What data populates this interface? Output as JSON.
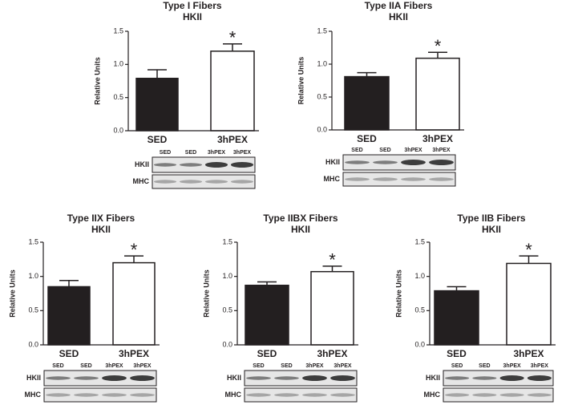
{
  "chart_data": [
    {
      "type": "bar",
      "title": "Type I Fibers",
      "subtitle": "HKII",
      "ylabel": "Relative Units",
      "categories": [
        "SED",
        "3hPEX"
      ],
      "values": [
        0.79,
        1.2
      ],
      "errors": [
        0.13,
        0.11
      ],
      "colors": [
        "#231f20",
        "#ffffff"
      ],
      "ylim": [
        0,
        1.5
      ],
      "yticks": [
        {
          "value": 0,
          "label": "0.0"
        },
        0.5,
        {
          "value": 1,
          "label": "1.0"
        },
        1.5
      ],
      "annotation": "*",
      "blot_lanes": [
        "SED",
        "SED",
        "3hPEX",
        "3hPEX"
      ],
      "blot_rows": [
        "HKII",
        "MHC"
      ]
    },
    {
      "type": "bar",
      "title": "Type IIA Fibers",
      "subtitle": "HKII",
      "ylabel": "Relative Units",
      "categories": [
        "SED",
        "3hPEX"
      ],
      "values": [
        0.81,
        1.09
      ],
      "errors": [
        0.06,
        0.09
      ],
      "colors": [
        "#231f20",
        "#ffffff"
      ],
      "ylim": [
        0,
        1.5
      ],
      "yticks": [
        {
          "value": 0,
          "label": "0.0"
        },
        0.5,
        {
          "value": 1,
          "label": "1.0"
        },
        1.5
      ],
      "annotation": "*",
      "blot_lanes": [
        "SED",
        "SED",
        "3hPEX",
        "3hPEX"
      ],
      "blot_rows": [
        "HKII",
        "MHC"
      ]
    },
    {
      "type": "bar",
      "title": "Type IIX Fibers",
      "subtitle": "HKII",
      "ylabel": "Relative Units",
      "categories": [
        "SED",
        "3hPEX"
      ],
      "values": [
        0.85,
        1.2
      ],
      "errors": [
        0.09,
        0.1
      ],
      "colors": [
        "#231f20",
        "#ffffff"
      ],
      "ylim": [
        0,
        1.5
      ],
      "yticks": [
        {
          "value": 0,
          "label": "0.0"
        },
        0.5,
        {
          "value": 1,
          "label": "1.0"
        },
        1.5
      ],
      "annotation": "*",
      "blot_lanes": [
        "SED",
        "SED",
        "3hPEX",
        "3hPEX"
      ],
      "blot_rows": [
        "HKII",
        "MHC"
      ]
    },
    {
      "type": "bar",
      "title": "Type IIBX Fibers",
      "subtitle": "HKII",
      "ylabel": "Relative Units",
      "categories": [
        "SED",
        "3hPEX"
      ],
      "values": [
        0.87,
        1.07
      ],
      "errors": [
        0.05,
        0.08
      ],
      "colors": [
        "#231f20",
        "#ffffff"
      ],
      "ylim": [
        0,
        1.5
      ],
      "yticks": [
        {
          "value": 0,
          "label": "0.0"
        },
        0.5,
        {
          "value": 1,
          "label": "1.0"
        },
        1.5
      ],
      "annotation": "*",
      "blot_lanes": [
        "SED",
        "SED",
        "3hPEX",
        "3hPEX"
      ],
      "blot_rows": [
        "HKII",
        "MHC"
      ]
    },
    {
      "type": "bar",
      "title": "Type IIB Fibers",
      "subtitle": "HKII",
      "ylabel": "Relative Units",
      "categories": [
        "SED",
        "3hPEX"
      ],
      "values": [
        0.79,
        1.19
      ],
      "errors": [
        0.06,
        0.11
      ],
      "colors": [
        "#231f20",
        "#ffffff"
      ],
      "ylim": [
        0,
        1.5
      ],
      "yticks": [
        {
          "value": 0,
          "label": "0.0"
        },
        0.5,
        {
          "value": 1,
          "label": "1.0"
        },
        1.5
      ],
      "annotation": "*",
      "blot_lanes": [
        "SED",
        "SED",
        "3hPEX",
        "3hPEX"
      ],
      "blot_rows": [
        "HKII",
        "MHC"
      ]
    }
  ]
}
